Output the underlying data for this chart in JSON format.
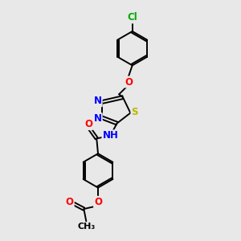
{
  "bg_color": "#e8e8e8",
  "bond_color": "#000000",
  "atom_colors": {
    "N": "#0000ff",
    "O": "#ff0000",
    "S": "#b8b800",
    "Cl": "#00aa00",
    "C": "#000000",
    "H": "#000000"
  },
  "bond_width": 1.4,
  "font_size": 8.5,
  "fig_size": [
    3.0,
    3.0
  ],
  "dpi": 100
}
